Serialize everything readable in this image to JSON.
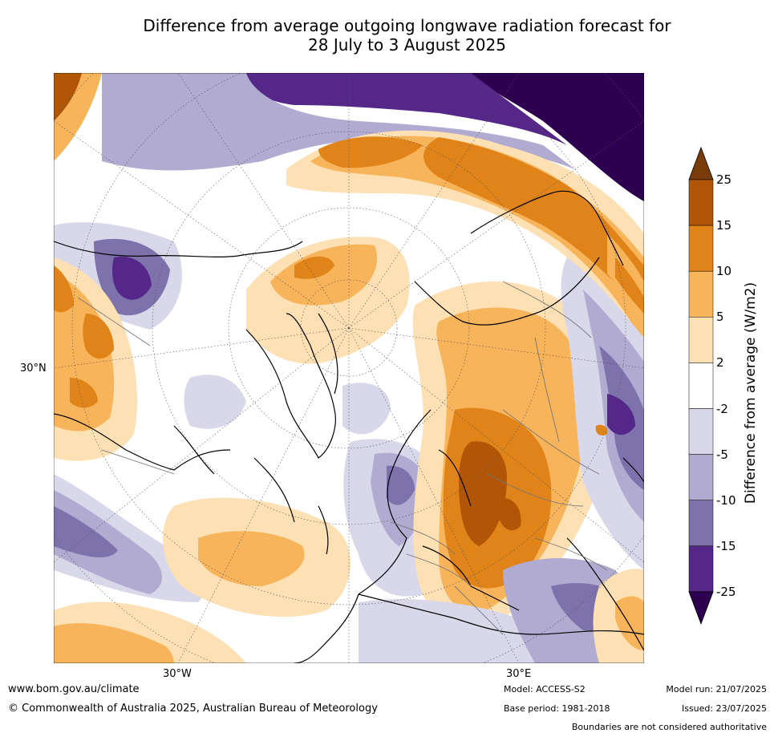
{
  "title_line1": "Difference from average outgoing longwave radiation forecast for",
  "title_line2": "28 July to 3 August 2025",
  "axis_labels": {
    "lat": "30°N",
    "lon_west": "30°W",
    "lon_east": "30°E"
  },
  "colorbar": {
    "title": "Difference from average (W/m2)",
    "ticks": [
      "25",
      "15",
      "10",
      "5",
      "2",
      "-2",
      "-5",
      "-10",
      "-15",
      "-25"
    ],
    "colors": [
      "#7a3d0a",
      "#b05606",
      "#e0841a",
      "#f8b45a",
      "#fde0b4",
      "#ffffff",
      "#d8d8ea",
      "#b1abd1",
      "#7e72ad",
      "#542788",
      "#2d0050"
    ]
  },
  "footer": {
    "website": "www.bom.gov.au/climate",
    "copyright": "© Commonwealth of Australia 2025, Australian Bureau of Meteorology",
    "model": "Model: ACCESS-S2",
    "base_period": "Base period: 1981-2018",
    "model_run": "Model run: 21/07/2025",
    "issued": "Issued: 23/07/2025",
    "disclaimer": "Boundaries are not considered authoritative"
  }
}
